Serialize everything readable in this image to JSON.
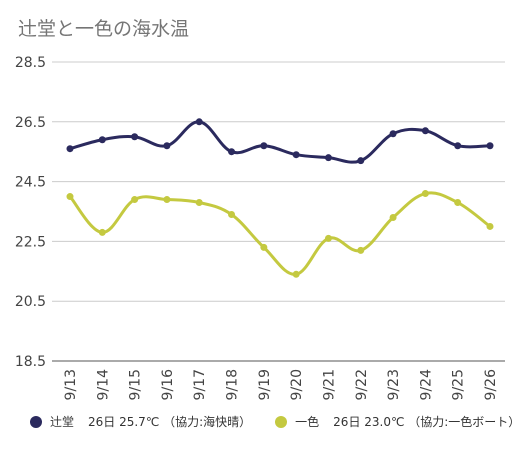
{
  "chart_data": {
    "type": "line",
    "title": "辻堂と一色の海水温",
    "categories": [
      "9/13",
      "9/14",
      "9/15",
      "9/16",
      "9/17",
      "9/18",
      "9/19",
      "9/20",
      "9/21",
      "9/22",
      "9/23",
      "9/24",
      "9/25",
      "9/26"
    ],
    "y_ticks": [
      "28.5",
      "26.5",
      "24.5",
      "22.5",
      "20.5",
      "18.5"
    ],
    "ylim": [
      18.5,
      28.5
    ],
    "grid": true,
    "legend_position": "bottom",
    "series": [
      {
        "name": "辻堂",
        "color": "#2b2a5e",
        "values": [
          25.6,
          25.9,
          26.0,
          25.7,
          26.5,
          25.5,
          25.7,
          25.4,
          25.3,
          25.2,
          26.1,
          26.2,
          25.7,
          25.7
        ]
      },
      {
        "name": "一色",
        "color": "#c4c940",
        "values": [
          24.0,
          22.8,
          23.9,
          23.9,
          23.8,
          23.4,
          22.3,
          21.4,
          22.6,
          22.2,
          23.3,
          24.1,
          23.8,
          23.0
        ]
      }
    ],
    "legend": [
      {
        "label": "辻堂",
        "detail": "26日 25.7℃ （協力:海快晴）",
        "color": "#2b2a5e"
      },
      {
        "label": "一色",
        "detail": "26日 23.0℃ （協力:一色ボート）",
        "color": "#c4c940"
      }
    ]
  }
}
